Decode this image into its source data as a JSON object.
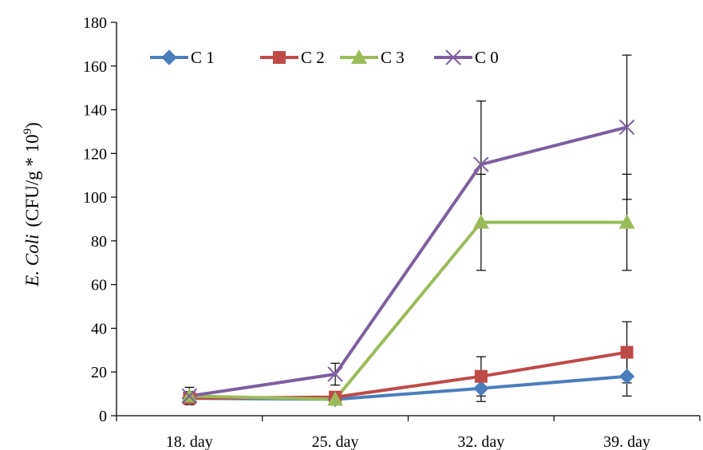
{
  "chart_data": {
    "type": "line",
    "categories": [
      "18. day",
      "25. day",
      "32. day",
      "39. day"
    ],
    "ylabel_italic": "E. Coli",
    "ylabel_rest": "(CFU/g * 10",
    "ylabel_sup": "9",
    "ylabel_close": ")",
    "ylim": [
      0,
      180
    ],
    "yticks": [
      0,
      20,
      40,
      60,
      80,
      100,
      120,
      140,
      160,
      180
    ],
    "grid": false,
    "legend_position": "top-left",
    "series": [
      {
        "name": "C 1",
        "color": "#4a7ebb",
        "marker": "diamond",
        "values": [
          8,
          7.5,
          12.5,
          18
        ],
        "errors": [
          2,
          1.5,
          6,
          9
        ]
      },
      {
        "name": "C 2",
        "color": "#be4b48",
        "marker": "square",
        "values": [
          8,
          8.5,
          18,
          29
        ],
        "errors": [
          2,
          1.5,
          9,
          14
        ]
      },
      {
        "name": "C 3",
        "color": "#9bbb59",
        "marker": "triangle",
        "values": [
          9,
          7.5,
          88.5,
          88.5
        ],
        "errors": [
          2,
          1.5,
          22,
          22
        ]
      },
      {
        "name": "C 0",
        "color": "#7d5fa0",
        "marker": "x",
        "values": [
          9,
          19,
          115,
          132
        ],
        "errors": [
          4,
          5,
          29,
          33
        ]
      }
    ]
  }
}
